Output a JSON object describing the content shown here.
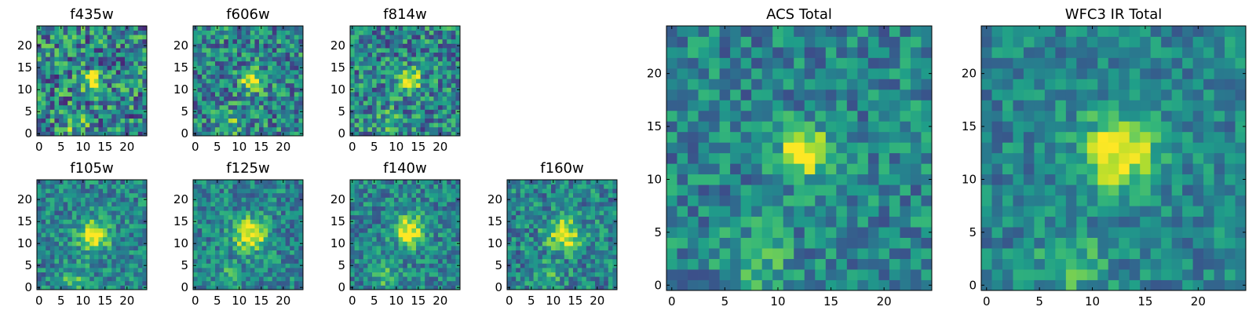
{
  "chart_data": [
    {
      "type": "heatmap",
      "title": "f435w",
      "xticks": [
        "0",
        "5",
        "10",
        "15",
        "20"
      ],
      "yticks": [
        "0",
        "5",
        "10",
        "15",
        "20"
      ],
      "xlim": [
        -0.5,
        24.5
      ],
      "ylim": [
        -0.5,
        24.5
      ],
      "source": {
        "x": 12.5,
        "y": 12,
        "amp": 0.55,
        "sig": 1.6
      },
      "noise": 0.35,
      "seed": 11
    },
    {
      "type": "heatmap",
      "title": "f606w",
      "xticks": [
        "0",
        "5",
        "10",
        "15",
        "20"
      ],
      "yticks": [
        "0",
        "5",
        "10",
        "15",
        "20"
      ],
      "xlim": [
        -0.5,
        24.5
      ],
      "ylim": [
        -0.5,
        24.5
      ],
      "source": {
        "x": 13,
        "y": 12,
        "amp": 0.6,
        "sig": 1.7
      },
      "noise": 0.3,
      "seed": 23
    },
    {
      "type": "heatmap",
      "title": "f814w",
      "xticks": [
        "0",
        "5",
        "10",
        "15",
        "20"
      ],
      "yticks": [
        "0",
        "5",
        "10",
        "15",
        "20"
      ],
      "xlim": [
        -0.5,
        24.5
      ],
      "ylim": [
        -0.5,
        24.5
      ],
      "source": {
        "x": 13,
        "y": 12,
        "amp": 0.6,
        "sig": 1.8
      },
      "noise": 0.3,
      "seed": 37
    },
    {
      "type": "heatmap",
      "title": "f105w",
      "xticks": [
        "0",
        "5",
        "10",
        "15",
        "20"
      ],
      "yticks": [
        "0",
        "5",
        "10",
        "15",
        "20"
      ],
      "xlim": [
        -0.5,
        24.5
      ],
      "ylim": [
        -0.5,
        24.5
      ],
      "source": {
        "x": 12.5,
        "y": 12,
        "amp": 0.6,
        "sig": 2.4
      },
      "noise": 0.22,
      "seed": 41
    },
    {
      "type": "heatmap",
      "title": "f125w",
      "xticks": [
        "0",
        "5",
        "10",
        "15",
        "20"
      ],
      "yticks": [
        "0",
        "5",
        "10",
        "15",
        "20"
      ],
      "xlim": [
        -0.5,
        24.5
      ],
      "ylim": [
        -0.5,
        24.5
      ],
      "source": {
        "x": 12.5,
        "y": 12,
        "amp": 0.6,
        "sig": 2.6
      },
      "noise": 0.22,
      "seed": 53
    },
    {
      "type": "heatmap",
      "title": "f140w",
      "xticks": [
        "0",
        "5",
        "10",
        "15",
        "20"
      ],
      "yticks": [
        "0",
        "5",
        "10",
        "15",
        "20"
      ],
      "xlim": [
        -0.5,
        24.5
      ],
      "ylim": [
        -0.5,
        24.5
      ],
      "source": {
        "x": 13,
        "y": 13,
        "amp": 0.6,
        "sig": 2.4
      },
      "noise": 0.22,
      "seed": 67
    },
    {
      "type": "heatmap",
      "title": "f160w",
      "xticks": [
        "0",
        "5",
        "10",
        "15",
        "20"
      ],
      "yticks": [
        "0",
        "5",
        "10",
        "15",
        "20"
      ],
      "xlim": [
        -0.5,
        24.5
      ],
      "ylim": [
        -0.5,
        24.5
      ],
      "source": {
        "x": 12.5,
        "y": 12,
        "amp": 0.55,
        "sig": 2.6
      },
      "noise": 0.24,
      "seed": 79
    },
    {
      "type": "heatmap",
      "title": "ACS Total",
      "xticks": [
        "0",
        "5",
        "10",
        "15",
        "20"
      ],
      "yticks": [
        "0",
        "5",
        "10",
        "15",
        "20"
      ],
      "xlim": [
        -0.5,
        24.5
      ],
      "ylim": [
        -0.5,
        24.5
      ],
      "source": {
        "x": 12.5,
        "y": 12.5,
        "amp": 0.65,
        "sig": 1.6
      },
      "noise": 0.22,
      "seed": 97
    },
    {
      "type": "heatmap",
      "title": "WFC3 IR Total",
      "xticks": [
        "0",
        "5",
        "10",
        "15",
        "20"
      ],
      "yticks": [
        "0",
        "5",
        "10",
        "15",
        "20"
      ],
      "xlim": [
        -0.5,
        24.5
      ],
      "ylim": [
        -0.5,
        24.5
      ],
      "source": {
        "x": 12.5,
        "y": 12.5,
        "amp": 0.6,
        "sig": 2.4
      },
      "noise": 0.18,
      "seed": 113
    }
  ],
  "colormap": "viridis",
  "colors": {
    "axis": "#000000",
    "background": "#ffffff"
  }
}
